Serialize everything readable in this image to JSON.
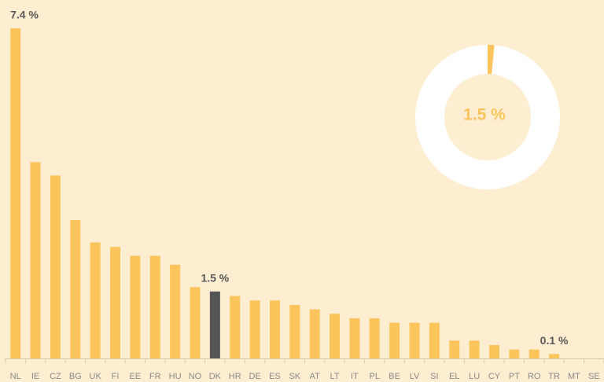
{
  "chart_data": [
    {
      "type": "bar",
      "categories": [
        "NL",
        "IE",
        "CZ",
        "BG",
        "UK",
        "FI",
        "EE",
        "FR",
        "HU",
        "NO",
        "DK",
        "HR",
        "DE",
        "ES",
        "SK",
        "AT",
        "LT",
        "IT",
        "PL",
        "BE",
        "LV",
        "SI",
        "EL",
        "LU",
        "CY",
        "PT",
        "RO",
        "TR",
        "MT",
        "SE"
      ],
      "values": [
        7.4,
        4.4,
        4.1,
        3.1,
        2.6,
        2.5,
        2.3,
        2.3,
        2.1,
        1.6,
        1.5,
        1.4,
        1.3,
        1.3,
        1.2,
        1.1,
        1.0,
        0.9,
        0.9,
        0.8,
        0.8,
        0.8,
        0.4,
        0.4,
        0.3,
        0.2,
        0.2,
        0.1,
        0,
        0
      ],
      "value_labels": [
        "7.4 %",
        null,
        null,
        null,
        null,
        null,
        null,
        null,
        null,
        null,
        "1.5 %",
        null,
        null,
        null,
        null,
        null,
        null,
        null,
        null,
        null,
        null,
        null,
        null,
        null,
        null,
        null,
        null,
        "0.1 %",
        null,
        null
      ],
      "colors": [
        "#fcc55c",
        "#fcc55c",
        "#fcc55c",
        "#fcc55c",
        "#fcc55c",
        "#fcc55c",
        "#fcc55c",
        "#fcc55c",
        "#fcc55c",
        "#fcc55c",
        "#555555",
        "#fcc55c",
        "#fcc55c",
        "#fcc55c",
        "#fcc55c",
        "#fcc55c",
        "#fcc55c",
        "#fcc55c",
        "#fcc55c",
        "#fcc55c",
        "#fcc55c",
        "#fcc55c",
        "#fcc55c",
        "#fcc55c",
        "#fcc55c",
        "#fcc55c",
        "#fcc55c",
        "#fcc55c",
        "#fcc55c",
        "#fcc55c"
      ],
      "ylim": [
        0,
        7.4
      ]
    },
    {
      "type": "donut",
      "values": [
        1.5,
        98.5
      ],
      "value_labels": [
        "1.5 %",
        null
      ],
      "colors": [
        "#fcc55c",
        "#ffffff"
      ]
    }
  ]
}
